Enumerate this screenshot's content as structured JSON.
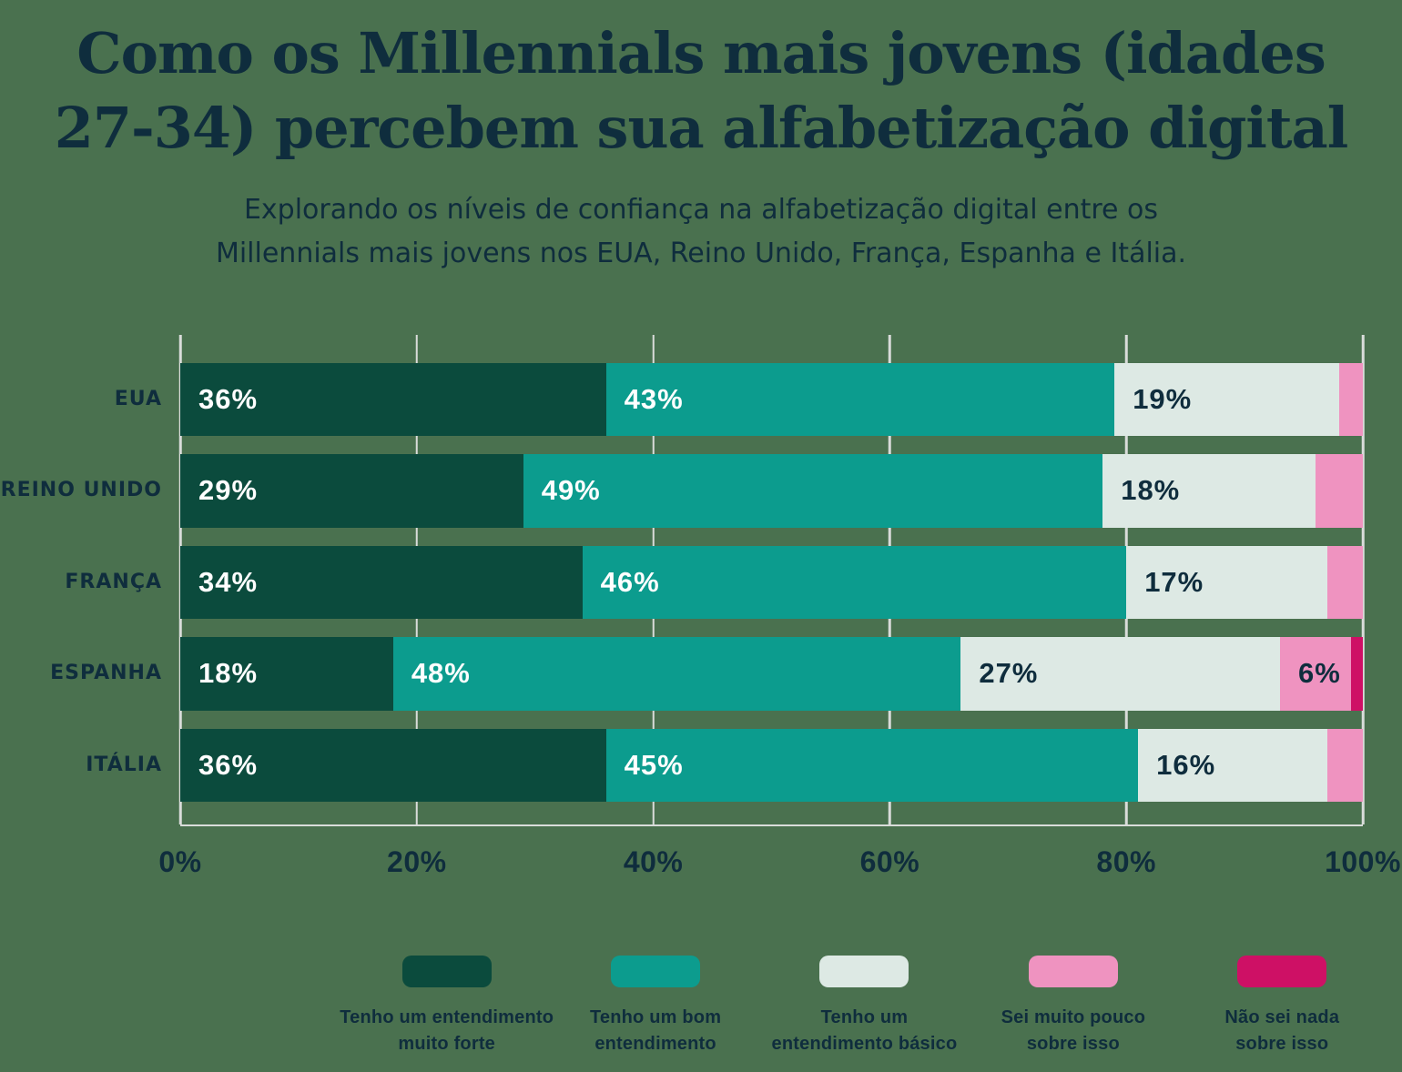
{
  "colors": {
    "background": "#4a714f",
    "text": "#0f2d3d",
    "grid": "#d9dcda",
    "label_on_dark": "#ffffff"
  },
  "title": {
    "lines": [
      "Como os Millennials mais jovens (idades",
      "27-34) percebem sua alfabetização digital"
    ]
  },
  "subtitle": {
    "lines": [
      "Explorando os níveis de confiança na alfabetização digital entre os",
      "Millennials mais jovens nos EUA, Reino Unido, França, Espanha e Itália."
    ]
  },
  "chart_data": {
    "type": "bar",
    "orientation": "horizontal",
    "stacked": true,
    "unit": "%",
    "categories": [
      "EUA",
      "REINO UNIDO",
      "FRANÇA",
      "ESPANHA",
      "ITÁLIA"
    ],
    "series": [
      {
        "name": "Tenho um entendimento muito forte",
        "color": "#0b4b3d",
        "label_color": "#ffffff",
        "values": [
          36,
          29,
          34,
          18,
          36
        ]
      },
      {
        "name": "Tenho um bom entendimento",
        "color": "#0c9c8e",
        "label_color": "#ffffff",
        "values": [
          43,
          49,
          46,
          48,
          45
        ]
      },
      {
        "name": "Tenho um entendimento básico",
        "color": "#dde9e4",
        "label_color": "#0f2d3d",
        "values": [
          19,
          18,
          17,
          27,
          16
        ]
      },
      {
        "name": "Sei muito pouco sobre isso",
        "color": "#ef93c0",
        "label_color": "#0f2d3d",
        "values": [
          2,
          4,
          3,
          6,
          3
        ]
      },
      {
        "name": "Não sei nada sobre isso",
        "color": "#ce1065",
        "label_color": "#0f2d3d",
        "values": [
          0,
          0,
          0,
          1,
          0
        ]
      }
    ],
    "legend_lines": [
      [
        "Tenho um entendimento",
        "muito forte"
      ],
      [
        "Tenho um bom",
        "entendimento"
      ],
      [
        "Tenho um",
        "entendimento básico"
      ],
      [
        "Sei muito pouco",
        "sobre isso"
      ],
      [
        "Não sei nada",
        "sobre isso"
      ]
    ],
    "x_axis": {
      "ticks": [
        "0%",
        "20%",
        "40%",
        "60%",
        "80%",
        "100%"
      ],
      "range": [
        0,
        100
      ],
      "grid": true
    },
    "label_format": "{value}%",
    "label_min_value": 5,
    "ylim": null
  }
}
